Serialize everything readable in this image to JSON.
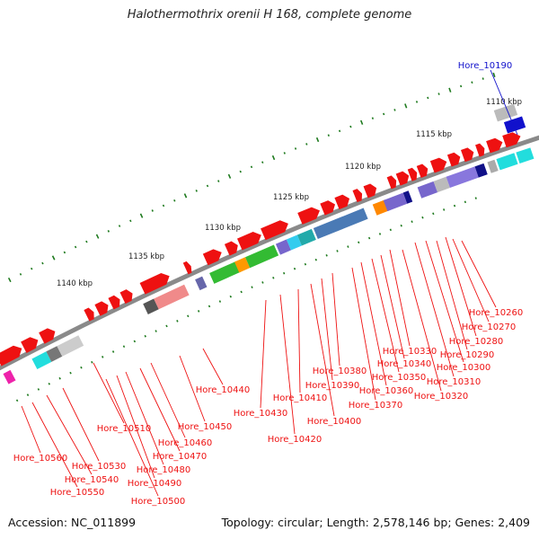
{
  "title": "Halothermothrix orenii H 168, complete genome",
  "footer": {
    "accession": "Accession: NC_011899",
    "summary": "Topology: circular; Length: 2,578,146 bp; Genes: 2,409"
  },
  "kbp_labels": [
    "1110 kbp",
    "1115 kbp",
    "1120 kbp",
    "1125 kbp",
    "1130 kbp",
    "1135 kbp",
    "1140 kbp"
  ],
  "highlight_gene": "Hore_10190",
  "gene_labels": [
    "Hore_10260",
    "Hore_10270",
    "Hore_10280",
    "Hore_10290",
    "Hore_10300",
    "Hore_10310",
    "Hore_10320",
    "Hore_10330",
    "Hore_10340",
    "Hore_10350",
    "Hore_10360",
    "Hore_10370",
    "Hore_10380",
    "Hore_10390",
    "Hore_10400",
    "Hore_10410",
    "Hore_10420",
    "Hore_10430",
    "Hore_10440",
    "Hore_10450",
    "Hore_10460",
    "Hore_10470",
    "Hore_10480",
    "Hore_10490",
    "Hore_10500",
    "Hore_10510",
    "Hore_10530",
    "Hore_10540",
    "Hore_10550",
    "Hore_10560"
  ],
  "colors": {
    "forward_gene": "#ee1111",
    "backbone": "#8a8a8a",
    "label_line": "#ee1111",
    "highlight": "#1111cc",
    "tick": "#1e7a1e"
  }
}
